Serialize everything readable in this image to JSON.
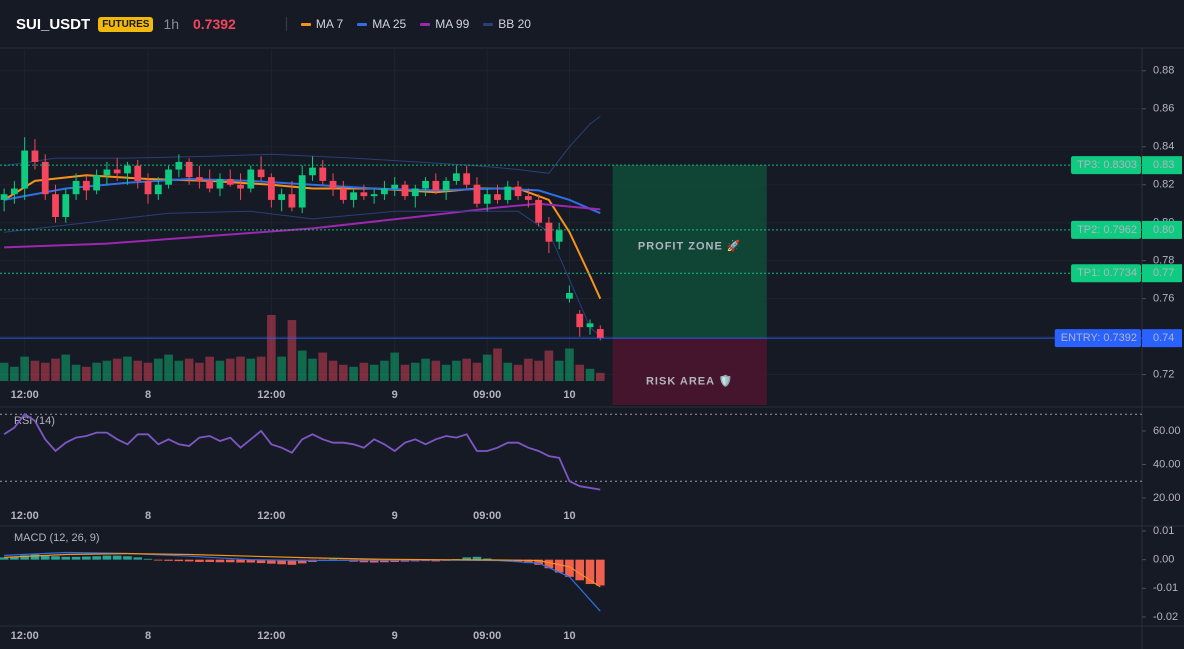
{
  "header": {
    "symbol": "SUI_USDT",
    "badge": "FUTURES",
    "interval": "1h",
    "price": "0.7392"
  },
  "chart_data": [
    {
      "type": "candlestick",
      "xlim": [
        -0.4,
        110.7
      ],
      "xticks": [
        {
          "value": 2,
          "label": "12:00"
        },
        {
          "value": 14,
          "label": "8"
        },
        {
          "value": 26,
          "label": "12:00"
        },
        {
          "value": 38,
          "label": "9"
        },
        {
          "value": 47,
          "label": "09:00"
        },
        {
          "value": 55,
          "label": "10"
        }
      ],
      "ylim": [
        0.704,
        0.892
      ],
      "yticks": [
        0.88,
        0.86,
        0.84,
        0.82,
        {
          "value": 0.8,
          "label": "0.80"
        },
        0.78,
        0.76,
        0.74,
        0.72
      ],
      "grid": true,
      "up_color": "#0ecb81",
      "down_color": "#f6465d",
      "open": [
        0.812,
        0.815,
        0.818,
        0.838,
        0.832,
        0.815,
        0.803,
        0.815,
        0.822,
        0.817,
        0.825,
        0.828,
        0.826,
        0.83,
        0.822,
        0.815,
        0.82,
        0.828,
        0.832,
        0.824,
        0.822,
        0.818,
        0.823,
        0.82,
        0.818,
        0.828,
        0.824,
        0.812,
        0.815,
        0.808,
        0.825,
        0.829,
        0.822,
        0.818,
        0.812,
        0.816,
        0.814,
        0.815,
        0.818,
        0.82,
        0.814,
        0.818,
        0.822,
        0.817,
        0.822,
        0.826,
        0.82,
        0.81,
        0.815,
        0.812,
        0.819,
        0.814,
        0.812,
        0.8,
        0.79,
        0.76,
        0.752,
        0.745,
        0.744
      ],
      "high": [
        0.818,
        0.822,
        0.845,
        0.844,
        0.836,
        0.82,
        0.818,
        0.826,
        0.825,
        0.828,
        0.832,
        0.834,
        0.832,
        0.833,
        0.826,
        0.824,
        0.83,
        0.836,
        0.834,
        0.83,
        0.828,
        0.826,
        0.828,
        0.826,
        0.83,
        0.835,
        0.826,
        0.818,
        0.822,
        0.83,
        0.835,
        0.833,
        0.826,
        0.822,
        0.818,
        0.82,
        0.818,
        0.822,
        0.824,
        0.822,
        0.82,
        0.824,
        0.826,
        0.824,
        0.83,
        0.83,
        0.824,
        0.818,
        0.82,
        0.822,
        0.822,
        0.818,
        0.815,
        0.803,
        0.8,
        0.767,
        0.754,
        0.749,
        0.746
      ],
      "low": [
        0.806,
        0.81,
        0.812,
        0.828,
        0.812,
        0.8,
        0.8,
        0.812,
        0.812,
        0.815,
        0.82,
        0.822,
        0.82,
        0.818,
        0.81,
        0.812,
        0.818,
        0.824,
        0.82,
        0.818,
        0.816,
        0.814,
        0.819,
        0.812,
        0.816,
        0.822,
        0.808,
        0.806,
        0.806,
        0.805,
        0.822,
        0.82,
        0.814,
        0.81,
        0.808,
        0.812,
        0.81,
        0.812,
        0.814,
        0.812,
        0.808,
        0.814,
        0.815,
        0.812,
        0.82,
        0.818,
        0.808,
        0.806,
        0.81,
        0.81,
        0.812,
        0.808,
        0.798,
        0.784,
        0.786,
        0.758,
        0.74,
        0.741,
        0.738
      ],
      "close": [
        0.815,
        0.818,
        0.838,
        0.832,
        0.815,
        0.803,
        0.815,
        0.822,
        0.817,
        0.825,
        0.828,
        0.826,
        0.83,
        0.822,
        0.815,
        0.82,
        0.828,
        0.832,
        0.824,
        0.822,
        0.818,
        0.823,
        0.82,
        0.818,
        0.828,
        0.824,
        0.812,
        0.815,
        0.808,
        0.825,
        0.829,
        0.822,
        0.818,
        0.812,
        0.816,
        0.814,
        0.815,
        0.818,
        0.82,
        0.814,
        0.818,
        0.822,
        0.817,
        0.822,
        0.826,
        0.82,
        0.81,
        0.815,
        0.812,
        0.819,
        0.814,
        0.812,
        0.8,
        0.79,
        0.796,
        0.763,
        0.745,
        0.747,
        0.7392
      ],
      "volume": [
        18,
        14,
        24,
        20,
        18,
        22,
        26,
        16,
        14,
        18,
        20,
        22,
        24,
        20,
        18,
        22,
        26,
        20,
        22,
        18,
        24,
        20,
        22,
        24,
        22,
        24,
        65,
        24,
        60,
        30,
        22,
        28,
        20,
        16,
        14,
        18,
        16,
        20,
        28,
        16,
        18,
        22,
        20,
        16,
        20,
        22,
        18,
        26,
        32,
        18,
        16,
        22,
        20,
        30,
        20,
        32,
        16,
        12,
        8
      ],
      "series": [
        {
          "name": "MA 7",
          "color": "#f7931a",
          "x": [
            0,
            3,
            8,
            14,
            20,
            26,
            30,
            36,
            42,
            46,
            50,
            53,
            55,
            57,
            58
          ],
          "values": [
            0.812,
            0.822,
            0.825,
            0.823,
            0.822,
            0.82,
            0.818,
            0.818,
            0.816,
            0.818,
            0.818,
            0.812,
            0.795,
            0.772,
            0.76
          ]
        },
        {
          "name": "MA 25",
          "color": "#2f6fe4",
          "x": [
            0,
            6,
            12,
            18,
            24,
            30,
            36,
            42,
            48,
            52,
            55,
            58
          ],
          "values": [
            0.812,
            0.818,
            0.821,
            0.823,
            0.822,
            0.82,
            0.818,
            0.817,
            0.818,
            0.817,
            0.812,
            0.805
          ]
        },
        {
          "name": "MA 99",
          "color": "#9c27b0",
          "x": [
            0,
            10,
            20,
            30,
            40,
            48,
            52,
            58
          ],
          "values": [
            0.787,
            0.789,
            0.793,
            0.797,
            0.803,
            0.808,
            0.81,
            0.807
          ]
        },
        {
          "name": "BB 20",
          "color": "#2a3f7a",
          "x": [
            0,
            5,
            12,
            20,
            26,
            34,
            40,
            46,
            50,
            53,
            55,
            57,
            58
          ],
          "values": [
            0.83,
            0.834,
            0.834,
            0.835,
            0.836,
            0.834,
            0.832,
            0.83,
            0.828,
            0.826,
            0.84,
            0.852,
            0.856
          ],
          "lower": {
            "x": [
              0,
              8,
              16,
              24,
              30,
              38,
              44,
              50,
              53,
              55,
              57,
              58
            ],
            "values": [
              0.795,
              0.8,
              0.805,
              0.806,
              0.802,
              0.806,
              0.806,
              0.806,
              0.795,
              0.77,
              0.745,
              0.74
            ]
          }
        }
      ],
      "levels": [
        {
          "label": "TP3: 0.8303",
          "value": 0.8303,
          "tag": "0.83",
          "color": "#0ecb81"
        },
        {
          "label": "TP2: 0.7962",
          "value": 0.7962,
          "tag": "0.80",
          "color": "#0ecb81"
        },
        {
          "label": "TP1: 0.7734",
          "value": 0.7734,
          "tag": "0.77",
          "color": "#0ecb81"
        },
        {
          "label": "ENTRY: 0.7392",
          "value": 0.7392,
          "tag": "0.74",
          "color": "#2962ff"
        }
      ],
      "zones": [
        {
          "label": "PROFIT ZONE 🚀",
          "from": 0.8303,
          "to": 0.7392,
          "x_range": [
            59.2,
            74.2
          ],
          "color": "#0f4a38",
          "text_color": "#16c784"
        },
        {
          "label": "RISK AREA 🛡️",
          "from": 0.7392,
          "to": 0.704,
          "x_range": [
            59.2,
            74.2
          ],
          "color": "#4a1530",
          "text_color": "#f0306c"
        }
      ]
    },
    {
      "type": "line",
      "title": "RSI (14)",
      "ylim": [
        15.8,
        72.5
      ],
      "yticks": [
        {
          "value": 60,
          "label": "60.00"
        },
        {
          "value": 40,
          "label": "40.00"
        },
        {
          "value": 20,
          "label": "20.00"
        }
      ],
      "bands": [
        70,
        30
      ],
      "series": [
        {
          "color": "#7e57c2",
          "values": [
            58,
            62,
            70,
            66,
            55,
            48,
            53,
            56,
            57,
            59,
            59,
            55,
            52,
            58,
            58,
            52,
            55,
            52,
            51,
            56,
            57,
            54,
            56,
            50,
            55,
            60,
            52,
            50,
            47,
            55,
            58,
            55,
            53,
            53,
            52,
            50,
            55,
            52,
            48,
            53,
            55,
            52,
            55,
            57,
            56,
            58,
            48,
            48,
            50,
            53,
            53,
            50,
            48,
            45,
            44,
            30,
            27,
            26,
            25
          ]
        }
      ]
    },
    {
      "type": "macd",
      "title": "MACD (12, 26, 9)",
      "ylim": [
        -0.0228,
        0.0114
      ],
      "yticks": [
        0.01,
        {
          "value": 0,
          "label": "0.00"
        },
        -0.01,
        -0.02
      ],
      "up_color": "#26a69a",
      "down_color": "#f0604f",
      "histogram": [
        0.0008,
        0.001,
        0.0015,
        0.0018,
        0.0014,
        0.0012,
        0.001,
        0.001,
        0.0011,
        0.0012,
        0.0014,
        0.0014,
        0.0012,
        0.0008,
        0.0003,
        -0.0003,
        -0.0004,
        -0.0005,
        -0.0006,
        -0.0008,
        -0.0008,
        -0.0009,
        -0.0009,
        -0.001,
        -0.001,
        -0.0012,
        -0.0014,
        -0.0016,
        -0.0018,
        -0.0013,
        -0.0008,
        -0.0003,
        0.0002,
        -0.0004,
        -0.0007,
        -0.0009,
        -0.001,
        -0.0009,
        -0.0008,
        -0.0007,
        -0.0006,
        -0.0005,
        -0.0006,
        -0.0004,
        0.0002,
        0.0008,
        0.001,
        0.0004,
        -0.0002,
        -0.0004,
        -0.0008,
        -0.0012,
        -0.0018,
        -0.003,
        -0.0045,
        -0.006,
        -0.0072,
        -0.0085,
        -0.009
      ],
      "series": [
        {
          "color": "#2f6fe4",
          "x": [
            0,
            6,
            12,
            18,
            24,
            30,
            36,
            42,
            48,
            52,
            55,
            58
          ],
          "values": [
            0.0015,
            0.0025,
            0.0022,
            0.0012,
            0,
            -0.0003,
            -0.0002,
            -0.0001,
            -0.0003,
            -0.0012,
            -0.006,
            -0.018
          ]
        },
        {
          "color": "#f7931a",
          "x": [
            0,
            6,
            12,
            18,
            24,
            30,
            36,
            42,
            48,
            52,
            55,
            58
          ],
          "values": [
            0.0008,
            0.0018,
            0.0021,
            0.0018,
            0.0012,
            0.0006,
            0.0002,
            0,
            -0.0001,
            -0.0003,
            -0.0025,
            -0.0095
          ]
        }
      ]
    }
  ]
}
